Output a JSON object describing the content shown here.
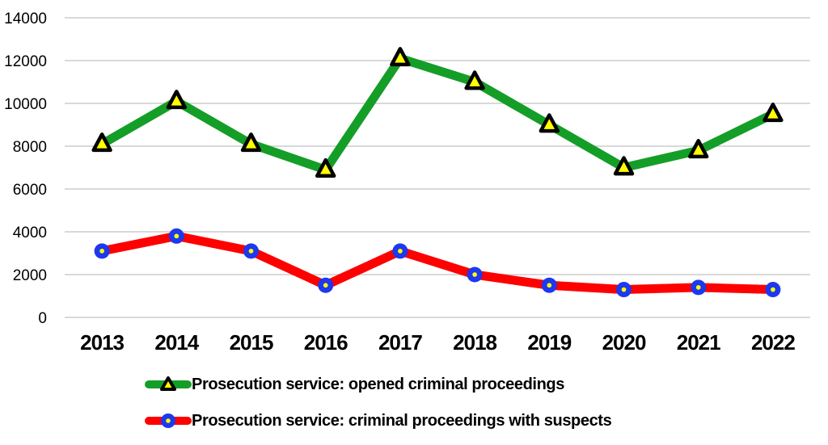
{
  "chart_data": {
    "type": "line",
    "title": "",
    "xlabel": "",
    "ylabel": "",
    "categories": [
      "2013",
      "2014",
      "2015",
      "2016",
      "2017",
      "2018",
      "2019",
      "2020",
      "2021",
      "2022"
    ],
    "series": [
      {
        "name": "Prosecution service: opened criminal proceedings",
        "line_color": "#149e27",
        "marker": "triangle",
        "marker_fill": "#ffff00",
        "marker_stroke": "#000000",
        "values": [
          8100,
          10100,
          8100,
          6900,
          12100,
          11000,
          9000,
          7000,
          7800,
          9500
        ]
      },
      {
        "name": "Prosecution service: criminal proceedings with suspects",
        "line_color": "#ff0000",
        "marker": "circle",
        "marker_fill": "#1d38ee",
        "marker_dot": "#ffff00",
        "values": [
          3100,
          3800,
          3100,
          1500,
          3100,
          2000,
          1500,
          1300,
          1400,
          1300
        ]
      }
    ],
    "ylim": [
      0,
      14000
    ],
    "ytick_step": 2000,
    "ytick_labels": [
      "0",
      "2000",
      "4000",
      "6000",
      "8000",
      "10000",
      "12000",
      "14000"
    ],
    "grid": true,
    "gridline_color": "#d9d9d9",
    "tick_label_color": "#000000",
    "legend_position": "bottom-left"
  }
}
